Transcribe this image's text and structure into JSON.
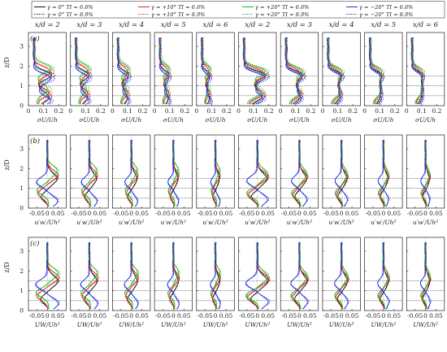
{
  "chart_data": {
    "type": "line",
    "legend": {
      "placement": "top",
      "entries": [
        {
          "label": "γ = 0° TI = 6.6%",
          "color": "#111111",
          "dash": "solid"
        },
        {
          "label": "γ = 0° TI = 8.9%",
          "color": "#111111",
          "dash": "dotted"
        },
        {
          "label": "γ = +10° TI = 6.6%",
          "color": "#e02020",
          "dash": "solid"
        },
        {
          "label": "γ = +10° TI = 8.9%",
          "color": "#e02020",
          "dash": "dotted"
        },
        {
          "label": "γ = +20° TI = 6.6%",
          "color": "#22bb22",
          "dash": "solid"
        },
        {
          "label": "γ = +20° TI = 8.9%",
          "color": "#22bb22",
          "dash": "dotted"
        },
        {
          "label": "γ = −20° TI = 6.6%",
          "color": "#2030e0",
          "dash": "solid"
        },
        {
          "label": "γ = −20° TI = 8.9%",
          "color": "#2030e0",
          "dash": "dotted"
        }
      ]
    },
    "column_titles": [
      "x/d = 2",
      "x/d = 3",
      "x/d = 4",
      "x/d = 5",
      "x/d = 6",
      "x/d = 2",
      "x/d = 3",
      "x/d = 4",
      "x/d = 5",
      "x/d = 6"
    ],
    "rows": [
      {
        "panel": "(a)",
        "ylabel": "z/D",
        "xlabel": "σU/Uh",
        "xlim": [
          0,
          0.25
        ],
        "xticks": [
          "0",
          "0.1",
          "0.2"
        ],
        "ylim": [
          0,
          3.7
        ],
        "yticks": [
          "0",
          "1",
          "2",
          "3"
        ]
      },
      {
        "panel": "(b)",
        "ylabel": "z/D",
        "xlabel": "u′w′/Uh²",
        "xlim": [
          -0.09,
          0.09
        ],
        "xticks": [
          "-0.05",
          "0",
          "0.05"
        ],
        "ylim": [
          0,
          3.7
        ],
        "yticks": [
          "0",
          "1",
          "2",
          "3"
        ]
      },
      {
        "panel": "(c)",
        "ylabel": "z/D",
        "xlabel": "UW/Uh²",
        "xlim": [
          -0.09,
          0.09
        ],
        "xticks": [
          "-0.05",
          "0",
          "0.05"
        ],
        "ylim": [
          0,
          3.7
        ],
        "yticks": [
          "0",
          "1",
          "2",
          "3"
        ]
      }
    ],
    "reference_lines_z": [
      0.5,
      1.0,
      1.5
    ],
    "grid": false
  }
}
